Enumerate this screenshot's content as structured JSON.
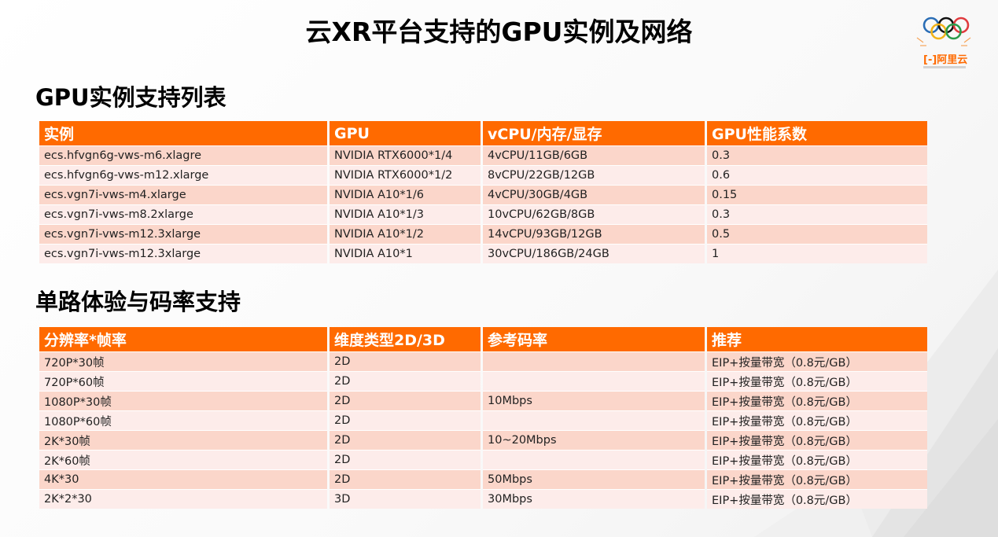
{
  "title": "云XR平台支持的GPU实例及网络",
  "logo": {
    "brand": "阿里云",
    "rings_colors": [
      "#2a6db5",
      "#f2b319",
      "#111111",
      "#2a9a4a",
      "#e03a3e"
    ]
  },
  "section1": {
    "title": "GPU实例支持列表",
    "headers": [
      "实例",
      "GPU",
      "vCPU/内存/显存",
      "GPU性能系数"
    ],
    "rows": [
      [
        "ecs.hfvgn6g-vws-m6.xlagre",
        "NVIDIA RTX6000*1/4",
        "4vCPU/11GB/6GB",
        "0.3"
      ],
      [
        "ecs.hfvgn6g-vws-m12.xlarge",
        "NVIDIA RTX6000*1/2",
        "8vCPU/22GB/12GB",
        "0.6"
      ],
      [
        "ecs.vgn7i-vws-m4.xlarge",
        "NVIDIA A10*1/6",
        "4vCPU/30GB/4GB",
        "0.15"
      ],
      [
        "ecs.vgn7i-vws-m8.2xlarge",
        "NVIDIA A10*1/3",
        "10vCPU/62GB/8GB",
        "0.3"
      ],
      [
        "ecs.vgn7i-vws-m12.3xlarge",
        "NVIDIA A10*1/2",
        "14vCPU/93GB/12GB",
        "0.5"
      ],
      [
        "ecs.vgn7i-vws-m12.3xlarge",
        "NVIDIA A10*1",
        "30vCPU/186GB/24GB",
        "1"
      ]
    ]
  },
  "section2": {
    "title": "单路体验与码率支持",
    "headers": [
      "分辨率*帧率",
      "维度类型2D/3D",
      "参考码率",
      "推荐"
    ],
    "rows": [
      [
        "720P*30帧",
        "2D",
        "",
        "EIP+按量带宽（0.8元/GB）"
      ],
      [
        "720P*60帧",
        "2D",
        "",
        "EIP+按量带宽（0.8元/GB）"
      ],
      [
        "1080P*30帧",
        "2D",
        "10Mbps",
        "EIP+按量带宽（0.8元/GB）"
      ],
      [
        "1080P*60帧",
        "2D",
        "",
        "EIP+按量带宽（0.8元/GB）"
      ],
      [
        "2K*30帧",
        "2D",
        "10~20Mbps",
        "EIP+按量带宽（0.8元/GB）"
      ],
      [
        "2K*60帧",
        "2D",
        "",
        "EIP+按量带宽（0.8元/GB）"
      ],
      [
        "4K*30",
        "2D",
        "50Mbps",
        "EIP+按量带宽（0.8元/GB）"
      ],
      [
        "2K*2*30",
        "3D",
        "30Mbps",
        "EIP+按量带宽（0.8元/GB）"
      ]
    ]
  },
  "colors": {
    "accent": "#ff6a00",
    "row_odd": "#fbd6ca",
    "row_even": "#fdecea"
  }
}
